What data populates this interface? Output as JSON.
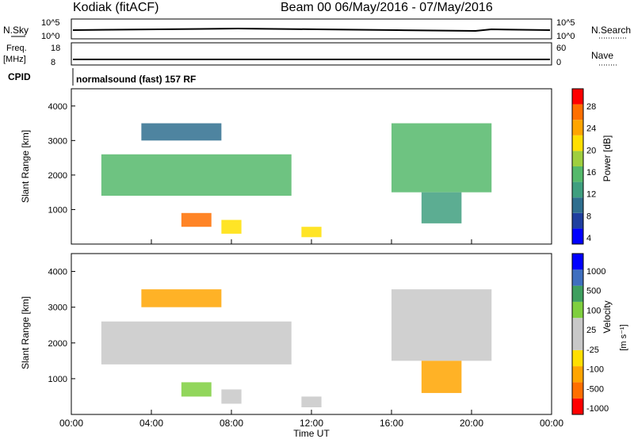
{
  "header": {
    "station": "Kodiak (fitACF)",
    "beam_and_dates": "Beam 00  06/May/2016 - 07/May/2016"
  },
  "strip_labels": {
    "nsky": "N.Sky",
    "freq": "Freq.",
    "freq_unit": "[MHz]",
    "cpid": "CPID",
    "nsearch": "N.Search",
    "nave": "Nave",
    "nsky_ticks": [
      "10^5",
      "10^0"
    ],
    "nsearch_ticks": [
      "10^5",
      "10^0"
    ],
    "freq_ticks": [
      "18",
      "8"
    ],
    "nave_ticks": [
      "60",
      "0"
    ],
    "cpid_text": "normalsound (fast) 157 RF"
  },
  "chart_data": [
    {
      "type": "heatmap",
      "panel": "power",
      "ylabel": "Slant Range [km]",
      "ylim": [
        0,
        4500
      ],
      "yticks": [
        "4000",
        "3000",
        "2000",
        "1000"
      ],
      "colorbar": {
        "label": "Power [dB]",
        "ticks": [
          "28",
          "24",
          "20",
          "16",
          "12",
          "8",
          "4"
        ],
        "colors": [
          "#0000ff",
          "#1f3f9f",
          "#2f6f8f",
          "#3f9f7f",
          "#55b96b",
          "#9fcf3f",
          "#ffdf00",
          "#ffa500",
          "#ff6f00",
          "#ff0000"
        ]
      },
      "echo_regions": [
        {
          "t0": 1.5,
          "t1": 11.0,
          "r0": 1400,
          "r1": 2600,
          "level": 14
        },
        {
          "t0": 3.5,
          "t1": 7.5,
          "r0": 3000,
          "r1": 3500,
          "level": 6
        },
        {
          "t0": 5.5,
          "t1": 7.0,
          "r0": 500,
          "r1": 900,
          "level": 26
        },
        {
          "t0": 7.5,
          "t1": 8.5,
          "r0": 300,
          "r1": 700,
          "level": 20
        },
        {
          "t0": 11.5,
          "t1": 12.5,
          "r0": 200,
          "r1": 500,
          "level": 20
        },
        {
          "t0": 16.0,
          "t1": 21.0,
          "r0": 1500,
          "r1": 3500,
          "level": 12
        },
        {
          "t0": 17.5,
          "t1": 19.5,
          "r0": 600,
          "r1": 1500,
          "level": 10
        }
      ]
    },
    {
      "type": "heatmap",
      "panel": "velocity",
      "xlabel": "Time UT",
      "ylabel": "Slant Range [km]",
      "ylim": [
        0,
        4500
      ],
      "yticks": [
        "4000",
        "3000",
        "2000",
        "1000"
      ],
      "xticks": [
        "00:00",
        "04:00",
        "08:00",
        "12:00",
        "16:00",
        "20:00",
        "00:00"
      ],
      "colorbar": {
        "label": "Velocity",
        "unit": "[m s⁻¹]",
        "ticks": [
          "1000",
          "500",
          "100",
          "25",
          "-25",
          "-100",
          "-500",
          "-1000"
        ],
        "colors": [
          "#ff0000",
          "#ff6f00",
          "#ffa500",
          "#ffdf00",
          "#c8c8c8",
          "#c8c8c8",
          "#7fcf3f",
          "#3f9f5f",
          "#3f6fbf",
          "#0000ff"
        ]
      },
      "echo_regions": [
        {
          "t0": 1.5,
          "t1": 11.0,
          "r0": 1400,
          "r1": 2600,
          "level": 0
        },
        {
          "t0": 3.5,
          "t1": 7.5,
          "r0": 3000,
          "r1": 3500,
          "level": -100
        },
        {
          "t0": 5.5,
          "t1": 7.0,
          "r0": 500,
          "r1": 900,
          "level": 100
        },
        {
          "t0": 7.5,
          "t1": 8.5,
          "r0": 300,
          "r1": 700,
          "level": 0
        },
        {
          "t0": 11.5,
          "t1": 12.5,
          "r0": 200,
          "r1": 500,
          "level": 25
        },
        {
          "t0": 16.0,
          "t1": 21.0,
          "r0": 1500,
          "r1": 3500,
          "level": 0
        },
        {
          "t0": 17.5,
          "t1": 19.5,
          "r0": 600,
          "r1": 1500,
          "level": -100
        }
      ]
    }
  ]
}
